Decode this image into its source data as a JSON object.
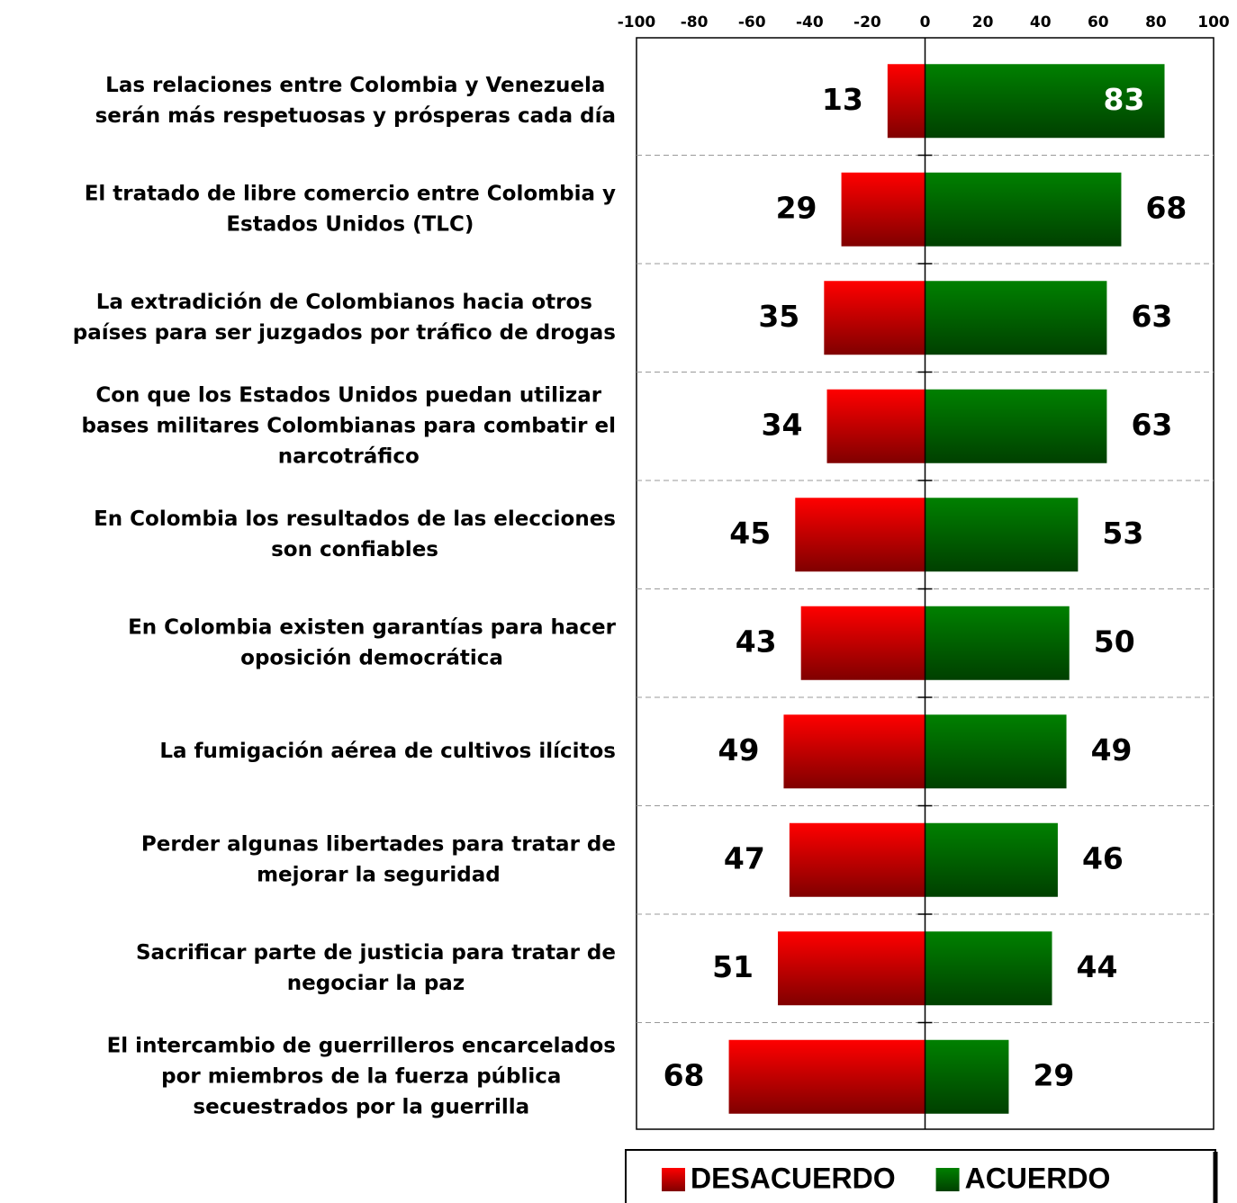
{
  "chart_data": {
    "type": "diverging_bar",
    "categories": [
      [
        "Las relaciones entre Colombia y Venezuela",
        "serán más respetuosas y prósperas cada día"
      ],
      [
        "El tratado de libre comercio entre Colombia y",
        "Estados Unidos (TLC)"
      ],
      [
        "La extradición de Colombianos hacia otros",
        "países para ser juzgados por tráfico de drogas"
      ],
      [
        "Con que los Estados Unidos puedan utilizar",
        "bases militares Colombianas para combatir el",
        "narcotráfico"
      ],
      [
        "En Colombia los resultados de las elecciones",
        "son confiables"
      ],
      [
        "En Colombia existen garantías para hacer",
        "oposición democrática"
      ],
      [
        "La fumigación aérea de cultivos ilícitos"
      ],
      [
        "Perder algunas libertades para tratar de",
        "mejorar la seguridad"
      ],
      [
        "Sacrificar parte de justicia para tratar de",
        "negociar la paz"
      ],
      [
        "El intercambio de guerrilleros encarcelados",
        "por miembros de la fuerza pública",
        "secuestrados por la guerrilla"
      ]
    ],
    "series": [
      {
        "name": "DESACUERDO",
        "color": "#ff0000",
        "values": [
          -13,
          -29,
          -35,
          -34,
          -45,
          -43,
          -49,
          -47,
          -51,
          -68
        ],
        "value_labels": [
          "13",
          "29",
          "35",
          "34",
          "45",
          "43",
          "49",
          "47",
          "51",
          "68"
        ]
      },
      {
        "name": "ACUERDO",
        "color": "#008000",
        "values": [
          83,
          68,
          63,
          63,
          53,
          50,
          49,
          46,
          44,
          29
        ]
      }
    ],
    "xlim": [
      -100,
      100
    ],
    "xticks": [
      -100,
      -80,
      -60,
      -40,
      -20,
      0,
      20,
      40,
      60,
      80,
      100
    ]
  }
}
